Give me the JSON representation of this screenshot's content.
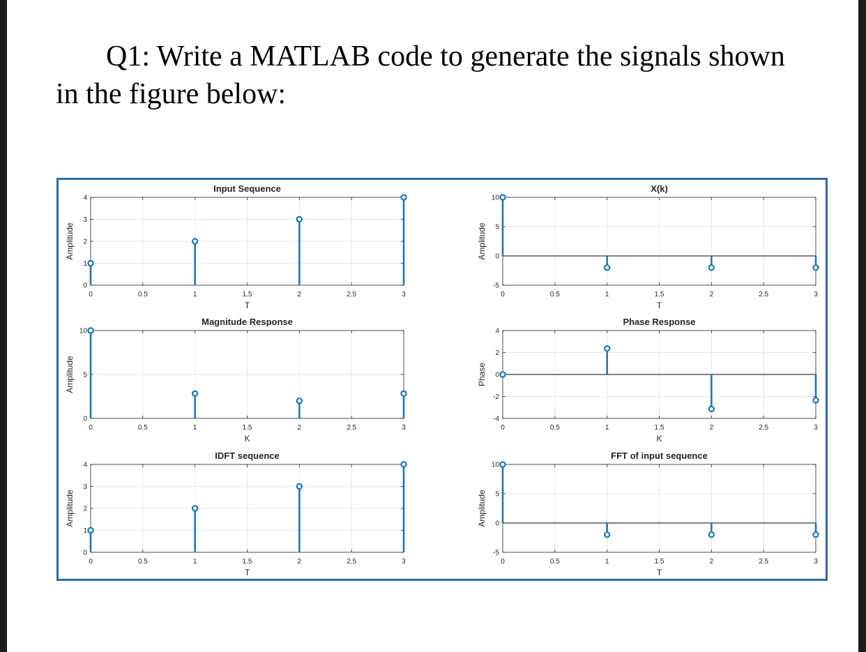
{
  "question": {
    "text": "Q1: Write a MATLAB code to generate the signals shown in the figure below:"
  },
  "style": {
    "stem_color": "#1f77b4",
    "grid_color": "#e6e6e6",
    "axis_color": "#262626"
  },
  "chart_data": [
    {
      "type": "stem",
      "title": "Input Sequence",
      "xlabel": "T",
      "ylabel": "Amplitude",
      "x": [
        0,
        1,
        2,
        3
      ],
      "values": [
        1,
        2,
        3,
        4
      ],
      "xlim": [
        0,
        3
      ],
      "ylim": [
        0,
        4
      ],
      "xticks": [
        "0",
        "0.5",
        "1",
        "1.5",
        "2",
        "2.5",
        "3"
      ],
      "yticks": [
        "0",
        "1",
        "2",
        "3",
        "4"
      ],
      "grid": true
    },
    {
      "type": "stem",
      "title": "X(k)",
      "xlabel": "T",
      "ylabel": "Amplitude",
      "x": [
        0,
        1,
        2,
        3
      ],
      "values": [
        10,
        -2,
        -2,
        -2
      ],
      "xlim": [
        0,
        3
      ],
      "ylim": [
        -5,
        10
      ],
      "xticks": [
        "0",
        "0.5",
        "1",
        "1.5",
        "2",
        "2.5",
        "3"
      ],
      "yticks": [
        "-5",
        "0",
        "5",
        "10"
      ],
      "grid": true
    },
    {
      "type": "stem",
      "title": "Magnitude Response",
      "xlabel": "K",
      "ylabel": "Amplitude",
      "x": [
        0,
        1,
        2,
        3
      ],
      "values": [
        10,
        2.83,
        2,
        2.83
      ],
      "xlim": [
        0,
        3
      ],
      "ylim": [
        0,
        10
      ],
      "xticks": [
        "0",
        "0.5",
        "1",
        "1.5",
        "2",
        "2.5",
        "3"
      ],
      "yticks": [
        "0",
        "5",
        "10"
      ],
      "grid": true
    },
    {
      "type": "stem",
      "title": "Phase Response",
      "xlabel": "K",
      "ylabel": "Phase",
      "x": [
        0,
        1,
        2,
        3
      ],
      "values": [
        0,
        2.36,
        -3.14,
        -2.36
      ],
      "xlim": [
        0,
        3
      ],
      "ylim": [
        -4,
        4
      ],
      "xticks": [
        "0",
        "0.5",
        "1",
        "1.5",
        "2",
        "2.5",
        "3"
      ],
      "yticks": [
        "-4",
        "-2",
        "0",
        "2",
        "4"
      ],
      "grid": true
    },
    {
      "type": "stem",
      "title": "IDFT sequence",
      "xlabel": "T",
      "ylabel": "Amplitude",
      "x": [
        0,
        1,
        2,
        3
      ],
      "values": [
        1,
        2,
        3,
        4
      ],
      "xlim": [
        0,
        3
      ],
      "ylim": [
        0,
        4
      ],
      "xticks": [
        "0",
        "0.5",
        "1",
        "1.5",
        "2",
        "2.5",
        "3"
      ],
      "yticks": [
        "0",
        "1",
        "2",
        "3",
        "4"
      ],
      "grid": true
    },
    {
      "type": "stem",
      "title": "FFT of input sequence",
      "xlabel": "T",
      "ylabel": "Amplitude",
      "x": [
        0,
        1,
        2,
        3
      ],
      "values": [
        10,
        -2,
        -2,
        -2
      ],
      "xlim": [
        0,
        3
      ],
      "ylim": [
        -5,
        10
      ],
      "xticks": [
        "0",
        "0.5",
        "1",
        "1.5",
        "2",
        "2.5",
        "3"
      ],
      "yticks": [
        "-5",
        "0",
        "5",
        "10"
      ],
      "grid": true
    }
  ]
}
